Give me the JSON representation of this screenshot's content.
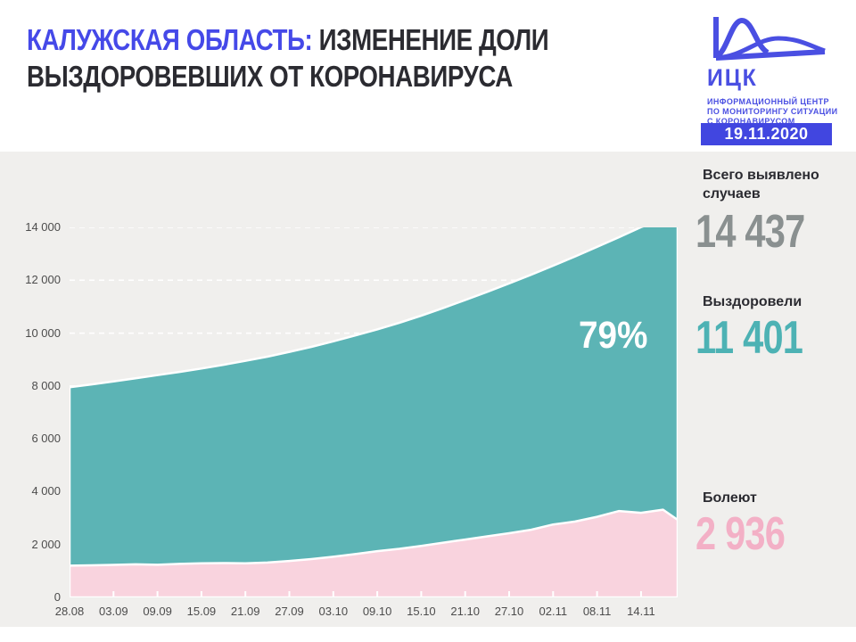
{
  "header": {
    "title_accent": "КАЛУЖСКАЯ ОБЛАСТЬ:",
    "title_rest_line1": " ИЗМЕНЕНИЕ ДОЛИ",
    "title_line2": "ВЫЗДОРОВЕВШИХ ОТ КОРОНАВИРУСА",
    "logo": {
      "abbr": "ИЦК",
      "tagline_lines": [
        "ИНФОРМАЦИОННЫЙ ЦЕНТР",
        "ПО МОНИТОРИНГУ СИТУАЦИИ",
        "С КОРОНАВИРУСОМ"
      ]
    },
    "date_badge": "19.11.2020"
  },
  "stats": {
    "total": {
      "label_line1": "Всего выявлено",
      "label_line2": "случаев",
      "value": "14 437",
      "color": "#8a9090"
    },
    "recovered": {
      "label": "Выздоровели",
      "value": "11 401",
      "color": "#4db2b4"
    },
    "sick": {
      "label": "Болеют",
      "value": "2 936",
      "color": "#f3b0c6"
    }
  },
  "colors": {
    "accent_blue": "#4549e8",
    "badge_blue": "#4146e0",
    "panel_gray": "#f0efed",
    "teal_area": "#5cb4b5",
    "pink_area": "#f9d3de",
    "dark_text": "#2b2b31"
  },
  "chart_data": {
    "type": "area",
    "title": "Калужская область: изменение доли выздоровевших от коронавируса",
    "percent_label": "79%",
    "grid": "white dashed horizontal",
    "legend_position": "right column (stat cards)",
    "ylim": [
      0,
      14000
    ],
    "total_days": 83,
    "x_days": [
      0,
      3,
      6,
      9,
      12,
      15,
      18,
      21,
      24,
      27,
      30,
      33,
      36,
      39,
      42,
      45,
      48,
      51,
      54,
      57,
      60,
      63,
      66,
      69,
      72,
      75,
      78,
      81,
      83
    ],
    "x_dates": [
      "28.08",
      "31.08",
      "03.09",
      "06.09",
      "09.09",
      "12.09",
      "15.09",
      "18.09",
      "21.09",
      "24.09",
      "27.09",
      "30.09",
      "03.10",
      "06.10",
      "09.10",
      "12.10",
      "15.10",
      "18.10",
      "21.10",
      "24.10",
      "27.10",
      "30.10",
      "02.11",
      "05.11",
      "08.11",
      "11.11",
      "14.11",
      "17.11",
      "19.11"
    ],
    "series": [
      {
        "name": "Всего выявлено случаев",
        "color": "#5cb4b5",
        "values": [
          7950,
          8060,
          8170,
          8290,
          8410,
          8530,
          8660,
          8800,
          8950,
          9110,
          9290,
          9480,
          9690,
          9910,
          10140,
          10390,
          10660,
          10950,
          11250,
          11560,
          11880,
          12210,
          12550,
          12900,
          13260,
          13630,
          14010,
          14280,
          14437
        ]
      },
      {
        "name": "Болеют",
        "color": "#f9d3de",
        "values": [
          1200,
          1215,
          1230,
          1250,
          1235,
          1270,
          1290,
          1300,
          1290,
          1320,
          1380,
          1450,
          1540,
          1640,
          1750,
          1840,
          1950,
          2070,
          2190,
          2310,
          2430,
          2560,
          2760,
          2870,
          3050,
          3270,
          3200,
          3320,
          2936
        ]
      }
    ],
    "x_ticks": [
      {
        "day": 0,
        "label": "28.08"
      },
      {
        "day": 6,
        "label": "03.09"
      },
      {
        "day": 12,
        "label": "09.09"
      },
      {
        "day": 18,
        "label": "15.09"
      },
      {
        "day": 24,
        "label": "21.09"
      },
      {
        "day": 30,
        "label": "27.09"
      },
      {
        "day": 36,
        "label": "03.10"
      },
      {
        "day": 42,
        "label": "09.10"
      },
      {
        "day": 48,
        "label": "15.10"
      },
      {
        "day": 54,
        "label": "21.10"
      },
      {
        "day": 60,
        "label": "27.10"
      },
      {
        "day": 66,
        "label": "02.11"
      },
      {
        "day": 72,
        "label": "08.11"
      },
      {
        "day": 78,
        "label": "14.11"
      }
    ],
    "y_ticks": [
      {
        "value": 0,
        "label": "0"
      },
      {
        "value": 2000,
        "label": "2 000"
      },
      {
        "value": 4000,
        "label": "4 000"
      },
      {
        "value": 6000,
        "label": "6 000"
      },
      {
        "value": 8000,
        "label": "8 000"
      },
      {
        "value": 10000,
        "label": "10 000"
      },
      {
        "value": 12000,
        "label": "12 000"
      },
      {
        "value": 14000,
        "label": "14 000"
      }
    ]
  }
}
